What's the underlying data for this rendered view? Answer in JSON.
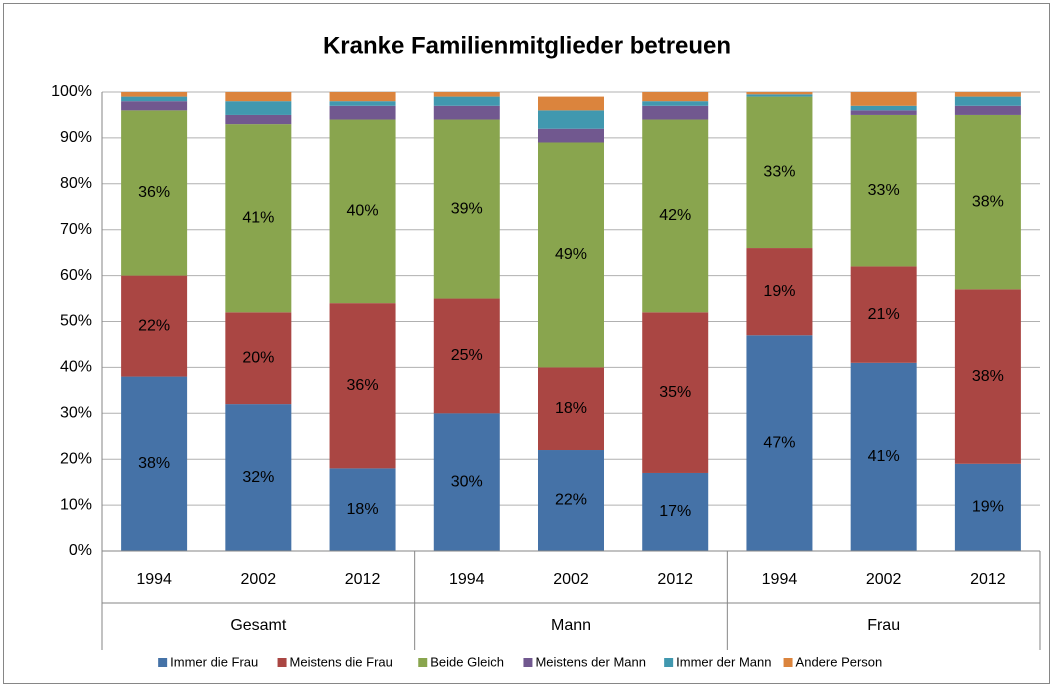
{
  "chart_data": {
    "type": "stacked_bar",
    "title": "Kranke Familienmitglieder  betreuen",
    "categories": [
      "1994",
      "2002",
      "2012",
      "1994",
      "2002",
      "2012",
      "1994",
      "2002",
      "2012"
    ],
    "groups": [
      "Gesamt",
      "Mann",
      "Frau"
    ],
    "series": [
      {
        "name": "Immer die Frau",
        "color": "#4572a7",
        "values": [
          38,
          32,
          18,
          30,
          22,
          17,
          47,
          41,
          19
        ],
        "value_labels": [
          "38%",
          "32%",
          "18%",
          "30%",
          "22%",
          "17%",
          "47%",
          "41%",
          "19%"
        ]
      },
      {
        "name": "Meistens die Frau",
        "color": "#aa4643",
        "values": [
          22,
          20,
          36,
          25,
          18,
          35,
          19,
          21,
          38
        ],
        "value_labels": [
          "22%",
          "20%",
          "36%",
          "25%",
          "18%",
          "35%",
          "19%",
          "21%",
          "38%"
        ]
      },
      {
        "name": "Beide Gleich",
        "color": "#89a54e",
        "values": [
          36,
          41,
          40,
          39,
          49,
          42,
          33,
          33,
          38
        ],
        "value_labels": [
          "36%",
          "41%",
          "40%",
          "39%",
          "49%",
          "42%",
          "33%",
          "33%",
          "38%"
        ]
      },
      {
        "name": "Meistens der Mann",
        "color": "#71588f",
        "values": [
          2,
          2,
          3,
          3,
          3,
          3,
          0,
          1,
          2
        ]
      },
      {
        "name": "Immer der Mann",
        "color": "#4198af",
        "values": [
          1,
          3,
          1,
          2,
          4,
          1,
          0.5,
          1,
          2
        ]
      },
      {
        "name": "Andere Person",
        "color": "#db843d",
        "values": [
          1,
          2,
          2,
          1,
          3,
          2,
          0.5,
          3,
          1
        ]
      }
    ],
    "ylim": [
      0,
      100
    ],
    "yticks": [
      {
        "value": 0,
        "label": "0%"
      },
      {
        "value": 10,
        "label": "10%"
      },
      {
        "value": 20,
        "label": "20%"
      },
      {
        "value": 30,
        "label": "30%"
      },
      {
        "value": 40,
        "label": "40%"
      },
      {
        "value": 50,
        "label": "50%"
      },
      {
        "value": 60,
        "label": "60%"
      },
      {
        "value": 70,
        "label": "70%"
      },
      {
        "value": 80,
        "label": "80%"
      },
      {
        "value": 90,
        "label": "90%"
      },
      {
        "value": 100,
        "label": "100%"
      }
    ],
    "grid": true,
    "legend": "bottom"
  }
}
